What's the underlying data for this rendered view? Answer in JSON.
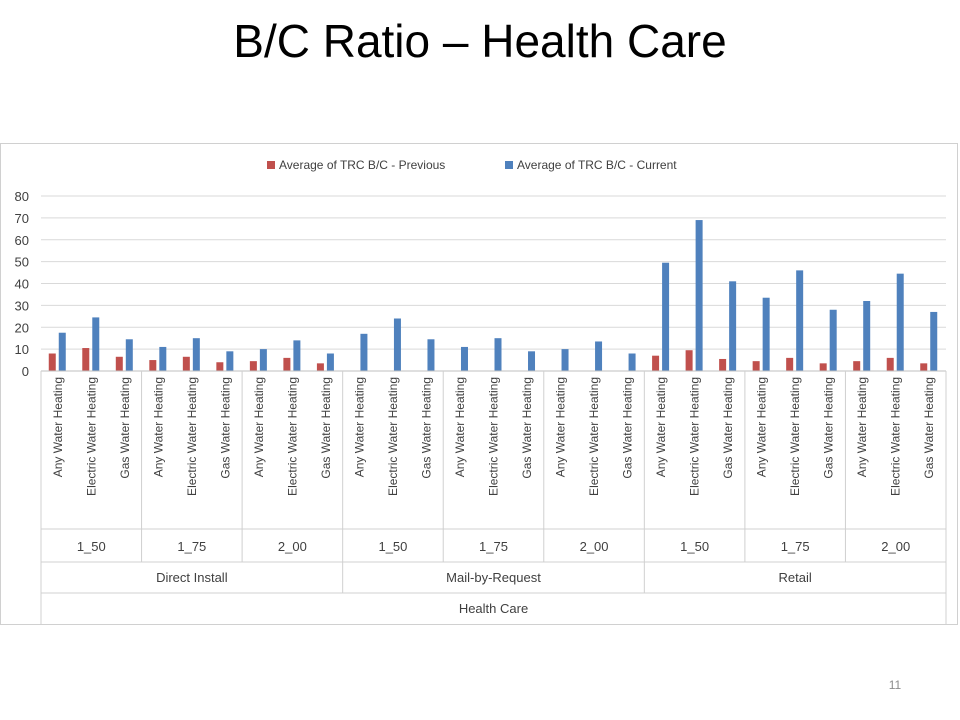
{
  "slide": {
    "title": "B/C Ratio – Health Care",
    "page_number": "11"
  },
  "chart_data": {
    "type": "bar",
    "title": "",
    "xlabel": "",
    "ylabel": "",
    "ylim": [
      0,
      80
    ],
    "yticks": [
      0,
      10,
      20,
      30,
      40,
      50,
      60,
      70,
      80
    ],
    "grid": true,
    "legend_position": "top",
    "categories": [
      "Any Water Heating",
      "Electric Water Heating",
      "Gas Water Heating",
      "Any Water Heating",
      "Electric Water Heating",
      "Gas Water Heating",
      "Any Water Heating",
      "Electric Water Heating",
      "Gas Water Heating",
      "Any Water Heating",
      "Electric Water Heating",
      "Gas Water Heating",
      "Any Water Heating",
      "Electric Water Heating",
      "Gas Water Heating",
      "Any Water Heating",
      "Electric Water Heating",
      "Gas Water Heating",
      "Any Water Heating",
      "Electric Water Heating",
      "Gas Water Heating",
      "Any Water Heating",
      "Electric Water Heating",
      "Gas Water Heating",
      "Any Water Heating",
      "Electric Water Heating",
      "Gas Water Heating"
    ],
    "groups_level2": [
      "1_50",
      "1_75",
      "2_00",
      "1_50",
      "1_75",
      "2_00",
      "1_50",
      "1_75",
      "2_00"
    ],
    "groups_level3": [
      "Direct Install",
      "Mail-by-Request",
      "Retail"
    ],
    "groups_level4": [
      "Health Care"
    ],
    "series": [
      {
        "name": "Average of TRC B/C - Previous",
        "color": "#c0504d",
        "values": [
          8,
          10.5,
          6.5,
          5,
          6.5,
          4,
          4.5,
          6,
          3.5,
          null,
          null,
          null,
          null,
          null,
          null,
          null,
          null,
          null,
          7,
          9.5,
          5.5,
          4.5,
          6,
          3.5,
          4.5,
          6,
          3.5
        ]
      },
      {
        "name": "Average of TRC B/C - Current",
        "color": "#4f81bd",
        "values": [
          17.5,
          24.5,
          14.5,
          11,
          15,
          9,
          10,
          14,
          8,
          17,
          24,
          14.5,
          11,
          15,
          9,
          10,
          13.5,
          8,
          49.5,
          69,
          41,
          33.5,
          46,
          28,
          32,
          44.5,
          27
        ]
      }
    ]
  }
}
